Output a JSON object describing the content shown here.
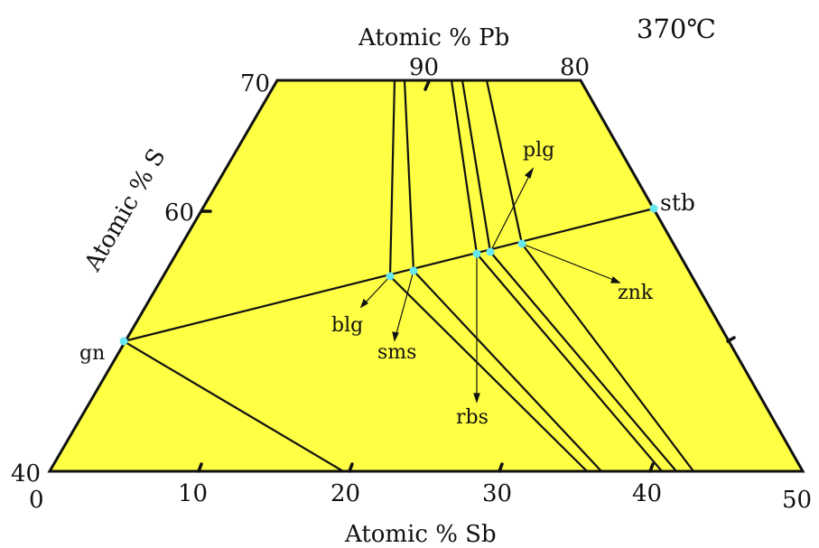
{
  "title": "370℃",
  "axes": {
    "top_label": "Atomic % Pb",
    "left_label": "Atomic % S",
    "bottom_label": "Atomic % Sb"
  },
  "ticks": {
    "bottom": [
      "0",
      "10",
      "20",
      "30",
      "40",
      "50"
    ],
    "left": [
      "40",
      "60",
      "70"
    ],
    "top": [
      "90",
      "80"
    ]
  },
  "phases": {
    "stb": "stb",
    "gn": "gn",
    "plg": "plg",
    "znk": "znk",
    "blg": "blg",
    "sms": "sms",
    "rbs": "rbs"
  },
  "colors": {
    "field": "#ffff44",
    "line": "#111111",
    "point": "#66e8ee"
  }
}
